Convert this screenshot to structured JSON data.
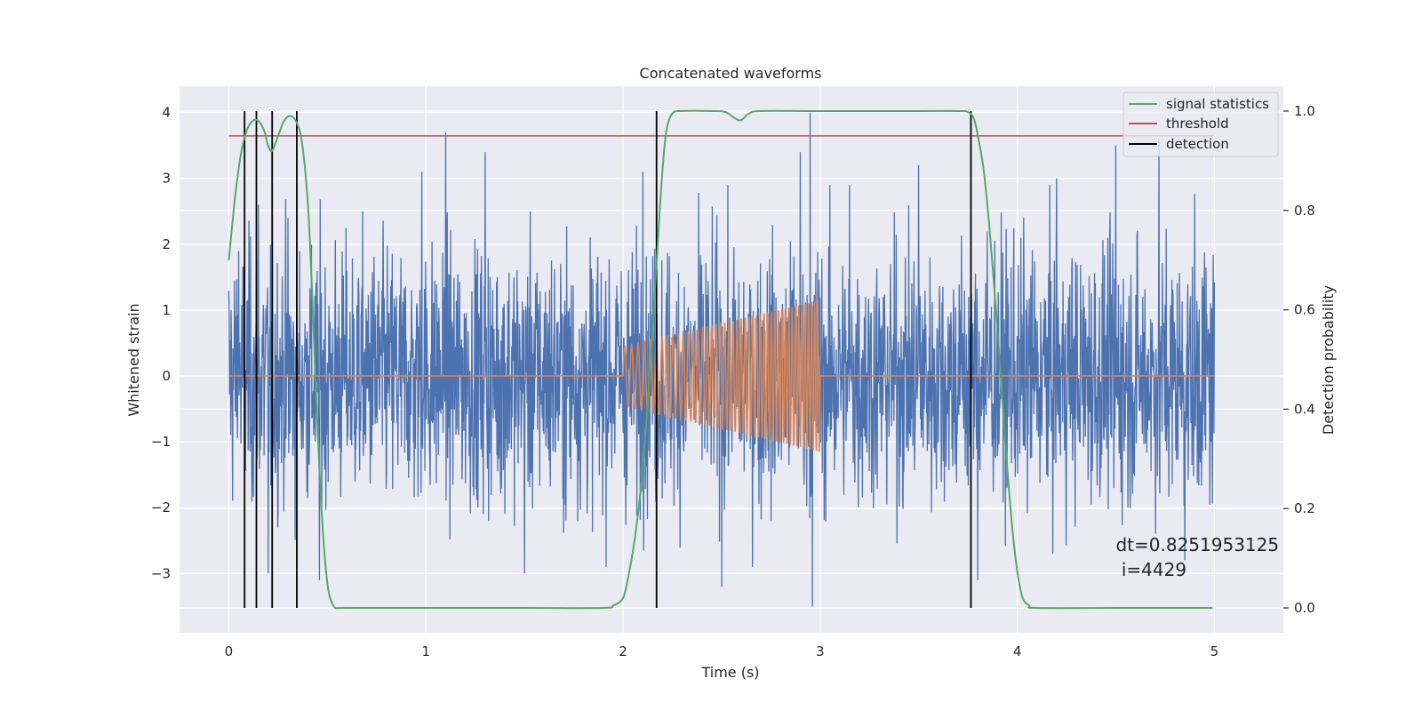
{
  "chart_data": {
    "type": "line",
    "title": "Concatenated waveforms",
    "xlabel": "Time (s)",
    "ylabel": "Whitened strain",
    "y2label": "Detection probability",
    "xlim": [
      -0.25,
      5.35
    ],
    "ylim": [
      -3.9,
      4.4
    ],
    "y2lim": [
      -0.05,
      1.05
    ],
    "xticks": [
      0,
      1,
      2,
      3,
      4,
      5
    ],
    "yticks": [
      -3,
      -2,
      -1,
      0,
      1,
      2,
      3,
      4
    ],
    "y2ticks": [
      0.0,
      0.2,
      0.4,
      0.6,
      0.8,
      1.0
    ],
    "xtick_labels": [
      "0",
      "1",
      "2",
      "3",
      "4",
      "5"
    ],
    "ytick_labels": [
      "−3",
      "−2",
      "−1",
      "0",
      "1",
      "2",
      "3",
      "4"
    ],
    "y2tick_labels": [
      "0.0",
      "0.2",
      "0.4",
      "0.6",
      "0.8",
      "1.0"
    ],
    "grid": true,
    "legend_position": "top-right",
    "colors": {
      "background": "#eaeaf2",
      "strain": "#4c72b0",
      "waveform": "#dd8452",
      "signal_statistics": "#55a868",
      "threshold": "#c44e52",
      "detection": "#000000"
    },
    "series": [
      {
        "name": "",
        "kind": "noise",
        "axis": "left",
        "x_range": [
          0,
          5
        ],
        "typical_amplitude": 1.3,
        "peaks": [
          [
            0.05,
            1.9
          ],
          [
            0.15,
            2.6
          ],
          [
            0.2,
            -3.0
          ],
          [
            0.3,
            2.4
          ],
          [
            0.46,
            -3.1
          ],
          [
            0.98,
            3.1
          ],
          [
            1.1,
            3.7
          ],
          [
            1.3,
            3.4
          ],
          [
            1.5,
            -3.0
          ],
          [
            2.1,
            3.1
          ],
          [
            2.5,
            -3.2
          ],
          [
            2.9,
            3.4
          ],
          [
            2.95,
            4.0
          ],
          [
            2.96,
            -3.5
          ],
          [
            3.15,
            2.9
          ],
          [
            3.5,
            3.2
          ],
          [
            3.8,
            -3.1
          ],
          [
            4.2,
            3.0
          ],
          [
            4.5,
            3.5
          ],
          [
            4.72,
            3.6
          ],
          [
            4.85,
            -2.8
          ]
        ]
      },
      {
        "name": "",
        "kind": "chirp",
        "axis": "left",
        "x_range": [
          0,
          5
        ],
        "chirp_start": 2.0,
        "chirp_end": 3.0,
        "amplitude_start": 0.45,
        "amplitude_end": 1.15
      },
      {
        "name": "signal statistics",
        "kind": "line",
        "axis": "right",
        "x": [
          0.0,
          0.03,
          0.06,
          0.09,
          0.12,
          0.15,
          0.18,
          0.2,
          0.22,
          0.25,
          0.28,
          0.31,
          0.34,
          0.37,
          0.4,
          0.42,
          0.44,
          0.47,
          0.5,
          0.53,
          0.56,
          0.6,
          1.0,
          1.5,
          1.9,
          1.95,
          2.0,
          2.03,
          2.06,
          2.09,
          2.12,
          2.15,
          2.18,
          2.2,
          2.22,
          2.25,
          2.3,
          2.45,
          2.52,
          2.57,
          2.6,
          2.64,
          2.7,
          3.0,
          3.5,
          3.7,
          3.75,
          3.78,
          3.8,
          3.83,
          3.86,
          3.9,
          3.94,
          3.98,
          4.02,
          4.06,
          4.1,
          4.5,
          4.99
        ],
        "y": [
          0.7,
          0.82,
          0.91,
          0.96,
          0.98,
          0.98,
          0.96,
          0.93,
          0.92,
          0.95,
          0.98,
          0.99,
          0.98,
          0.94,
          0.82,
          0.66,
          0.46,
          0.2,
          0.05,
          0.005,
          0.0,
          0.0,
          0.0,
          0.0,
          0.0,
          0.005,
          0.02,
          0.07,
          0.14,
          0.24,
          0.38,
          0.56,
          0.76,
          0.88,
          0.96,
          0.995,
          1.0,
          1.0,
          0.998,
          0.985,
          0.982,
          0.995,
          1.0,
          1.0,
          1.0,
          1.0,
          0.998,
          0.985,
          0.95,
          0.88,
          0.76,
          0.56,
          0.33,
          0.14,
          0.03,
          0.005,
          0.0,
          0.0,
          0.0
        ]
      },
      {
        "name": "threshold",
        "kind": "hline",
        "axis": "right",
        "value": 0.95,
        "x_range": [
          0,
          5
        ]
      },
      {
        "name": "detection",
        "kind": "vlines",
        "axis": "right",
        "x": [
          0.08,
          0.14,
          0.22,
          0.345,
          2.17,
          3.765
        ],
        "y_range": [
          0,
          1
        ]
      }
    ],
    "legend": [
      "signal statistics",
      "threshold",
      "detection"
    ],
    "annotation": {
      "line1": "dt=0.8251953125",
      "line2": " i=4429",
      "x": 4.5,
      "y": 0.1
    }
  }
}
